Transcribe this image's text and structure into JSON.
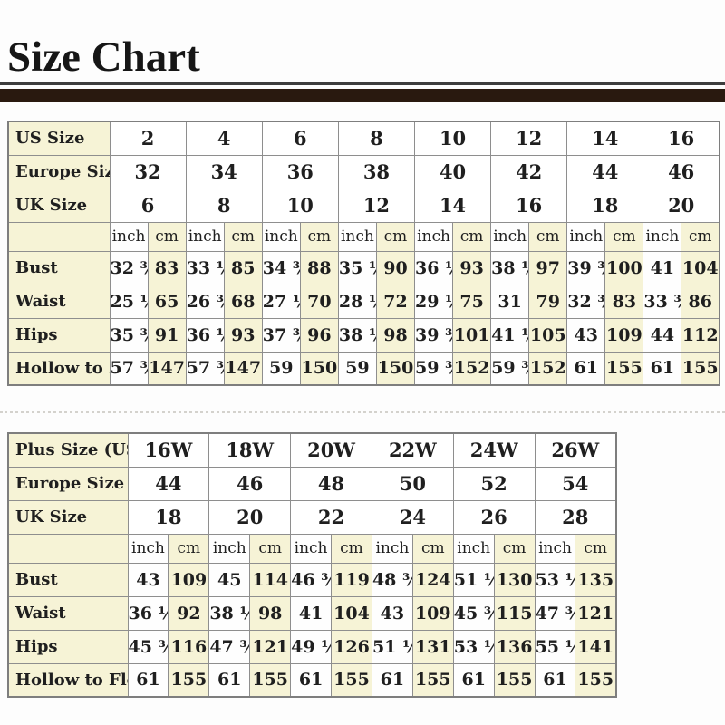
{
  "title": "Size Chart",
  "units": {
    "inch": "inch",
    "cm": "cm"
  },
  "colors": {
    "cream": "#f6f3d6",
    "header_bar": "#29190f",
    "grid_border": "#8e8e8e",
    "text": "#1f1f1f"
  },
  "table1": {
    "size_rows": [
      {
        "label": "US Size",
        "values": [
          "2",
          "4",
          "6",
          "8",
          "10",
          "12",
          "14",
          "16"
        ]
      },
      {
        "label": "Europe Size",
        "values": [
          "32",
          "34",
          "36",
          "38",
          "40",
          "42",
          "44",
          "46"
        ]
      },
      {
        "label": "UK Size",
        "values": [
          "6",
          "8",
          "10",
          "12",
          "14",
          "16",
          "18",
          "20"
        ]
      }
    ],
    "measure_rows": [
      {
        "label": "Bust",
        "pairs": [
          [
            "32 ¾",
            "83"
          ],
          [
            "33 ½",
            "85"
          ],
          [
            "34 ¾",
            "88"
          ],
          [
            "35 ½",
            "90"
          ],
          [
            "36 ½",
            "93"
          ],
          [
            "38 ½",
            "97"
          ],
          [
            "39 ¾",
            "100"
          ],
          [
            "41",
            "104"
          ]
        ]
      },
      {
        "label": "Waist",
        "pairs": [
          [
            "25 ½",
            "65"
          ],
          [
            "26 ¾",
            "68"
          ],
          [
            "27 ½",
            "70"
          ],
          [
            "28 ¼",
            "72"
          ],
          [
            "29 ½",
            "75"
          ],
          [
            "31",
            "79"
          ],
          [
            "32 ¾",
            "83"
          ],
          [
            "33 ¾",
            "86"
          ]
        ]
      },
      {
        "label": "Hips",
        "pairs": [
          [
            "35 ¾",
            "91"
          ],
          [
            "36 ½",
            "93"
          ],
          [
            "37 ¾",
            "96"
          ],
          [
            "38 ½",
            "98"
          ],
          [
            "39 ¾",
            "101"
          ],
          [
            "41 ¼",
            "105"
          ],
          [
            "43",
            "109"
          ],
          [
            "44",
            "112"
          ]
        ]
      },
      {
        "label": "Hollow to Floor",
        "pairs": [
          [
            "57 ¾",
            "147"
          ],
          [
            "57 ¾",
            "147"
          ],
          [
            "59",
            "150"
          ],
          [
            "59",
            "150"
          ],
          [
            "59 ¾",
            "152"
          ],
          [
            "59 ¾",
            "152"
          ],
          [
            "61",
            "155"
          ],
          [
            "61",
            "155"
          ]
        ]
      }
    ]
  },
  "table2": {
    "size_rows": [
      {
        "label": "Plus Size (US)",
        "values": [
          "16W",
          "18W",
          "20W",
          "22W",
          "24W",
          "26W"
        ]
      },
      {
        "label": "Europe Size",
        "values": [
          "44",
          "46",
          "48",
          "50",
          "52",
          "54"
        ]
      },
      {
        "label": "UK Size",
        "values": [
          "18",
          "20",
          "22",
          "24",
          "26",
          "28"
        ]
      }
    ],
    "measure_rows": [
      {
        "label": "Bust",
        "pairs": [
          [
            "43",
            "109"
          ],
          [
            "45",
            "114"
          ],
          [
            "46 ¾",
            "119"
          ],
          [
            "48 ¾",
            "124"
          ],
          [
            "51 ¼",
            "130"
          ],
          [
            "53 ¼",
            "135"
          ]
        ]
      },
      {
        "label": "Waist",
        "pairs": [
          [
            "36 ¼",
            "92"
          ],
          [
            "38 ½",
            "98"
          ],
          [
            "41",
            "104"
          ],
          [
            "43",
            "109"
          ],
          [
            "45 ¾",
            "115"
          ],
          [
            "47 ¾",
            "121"
          ]
        ]
      },
      {
        "label": "Hips",
        "pairs": [
          [
            "45 ¾",
            "116"
          ],
          [
            "47 ¾",
            "121"
          ],
          [
            "49 ½",
            "126"
          ],
          [
            "51 ½",
            "131"
          ],
          [
            "53 ½",
            "136"
          ],
          [
            "55 ½",
            "141"
          ]
        ]
      },
      {
        "label": "Hollow to Floor",
        "pairs": [
          [
            "61",
            "155"
          ],
          [
            "61",
            "155"
          ],
          [
            "61",
            "155"
          ],
          [
            "61",
            "155"
          ],
          [
            "61",
            "155"
          ],
          [
            "61",
            "155"
          ]
        ]
      }
    ]
  }
}
